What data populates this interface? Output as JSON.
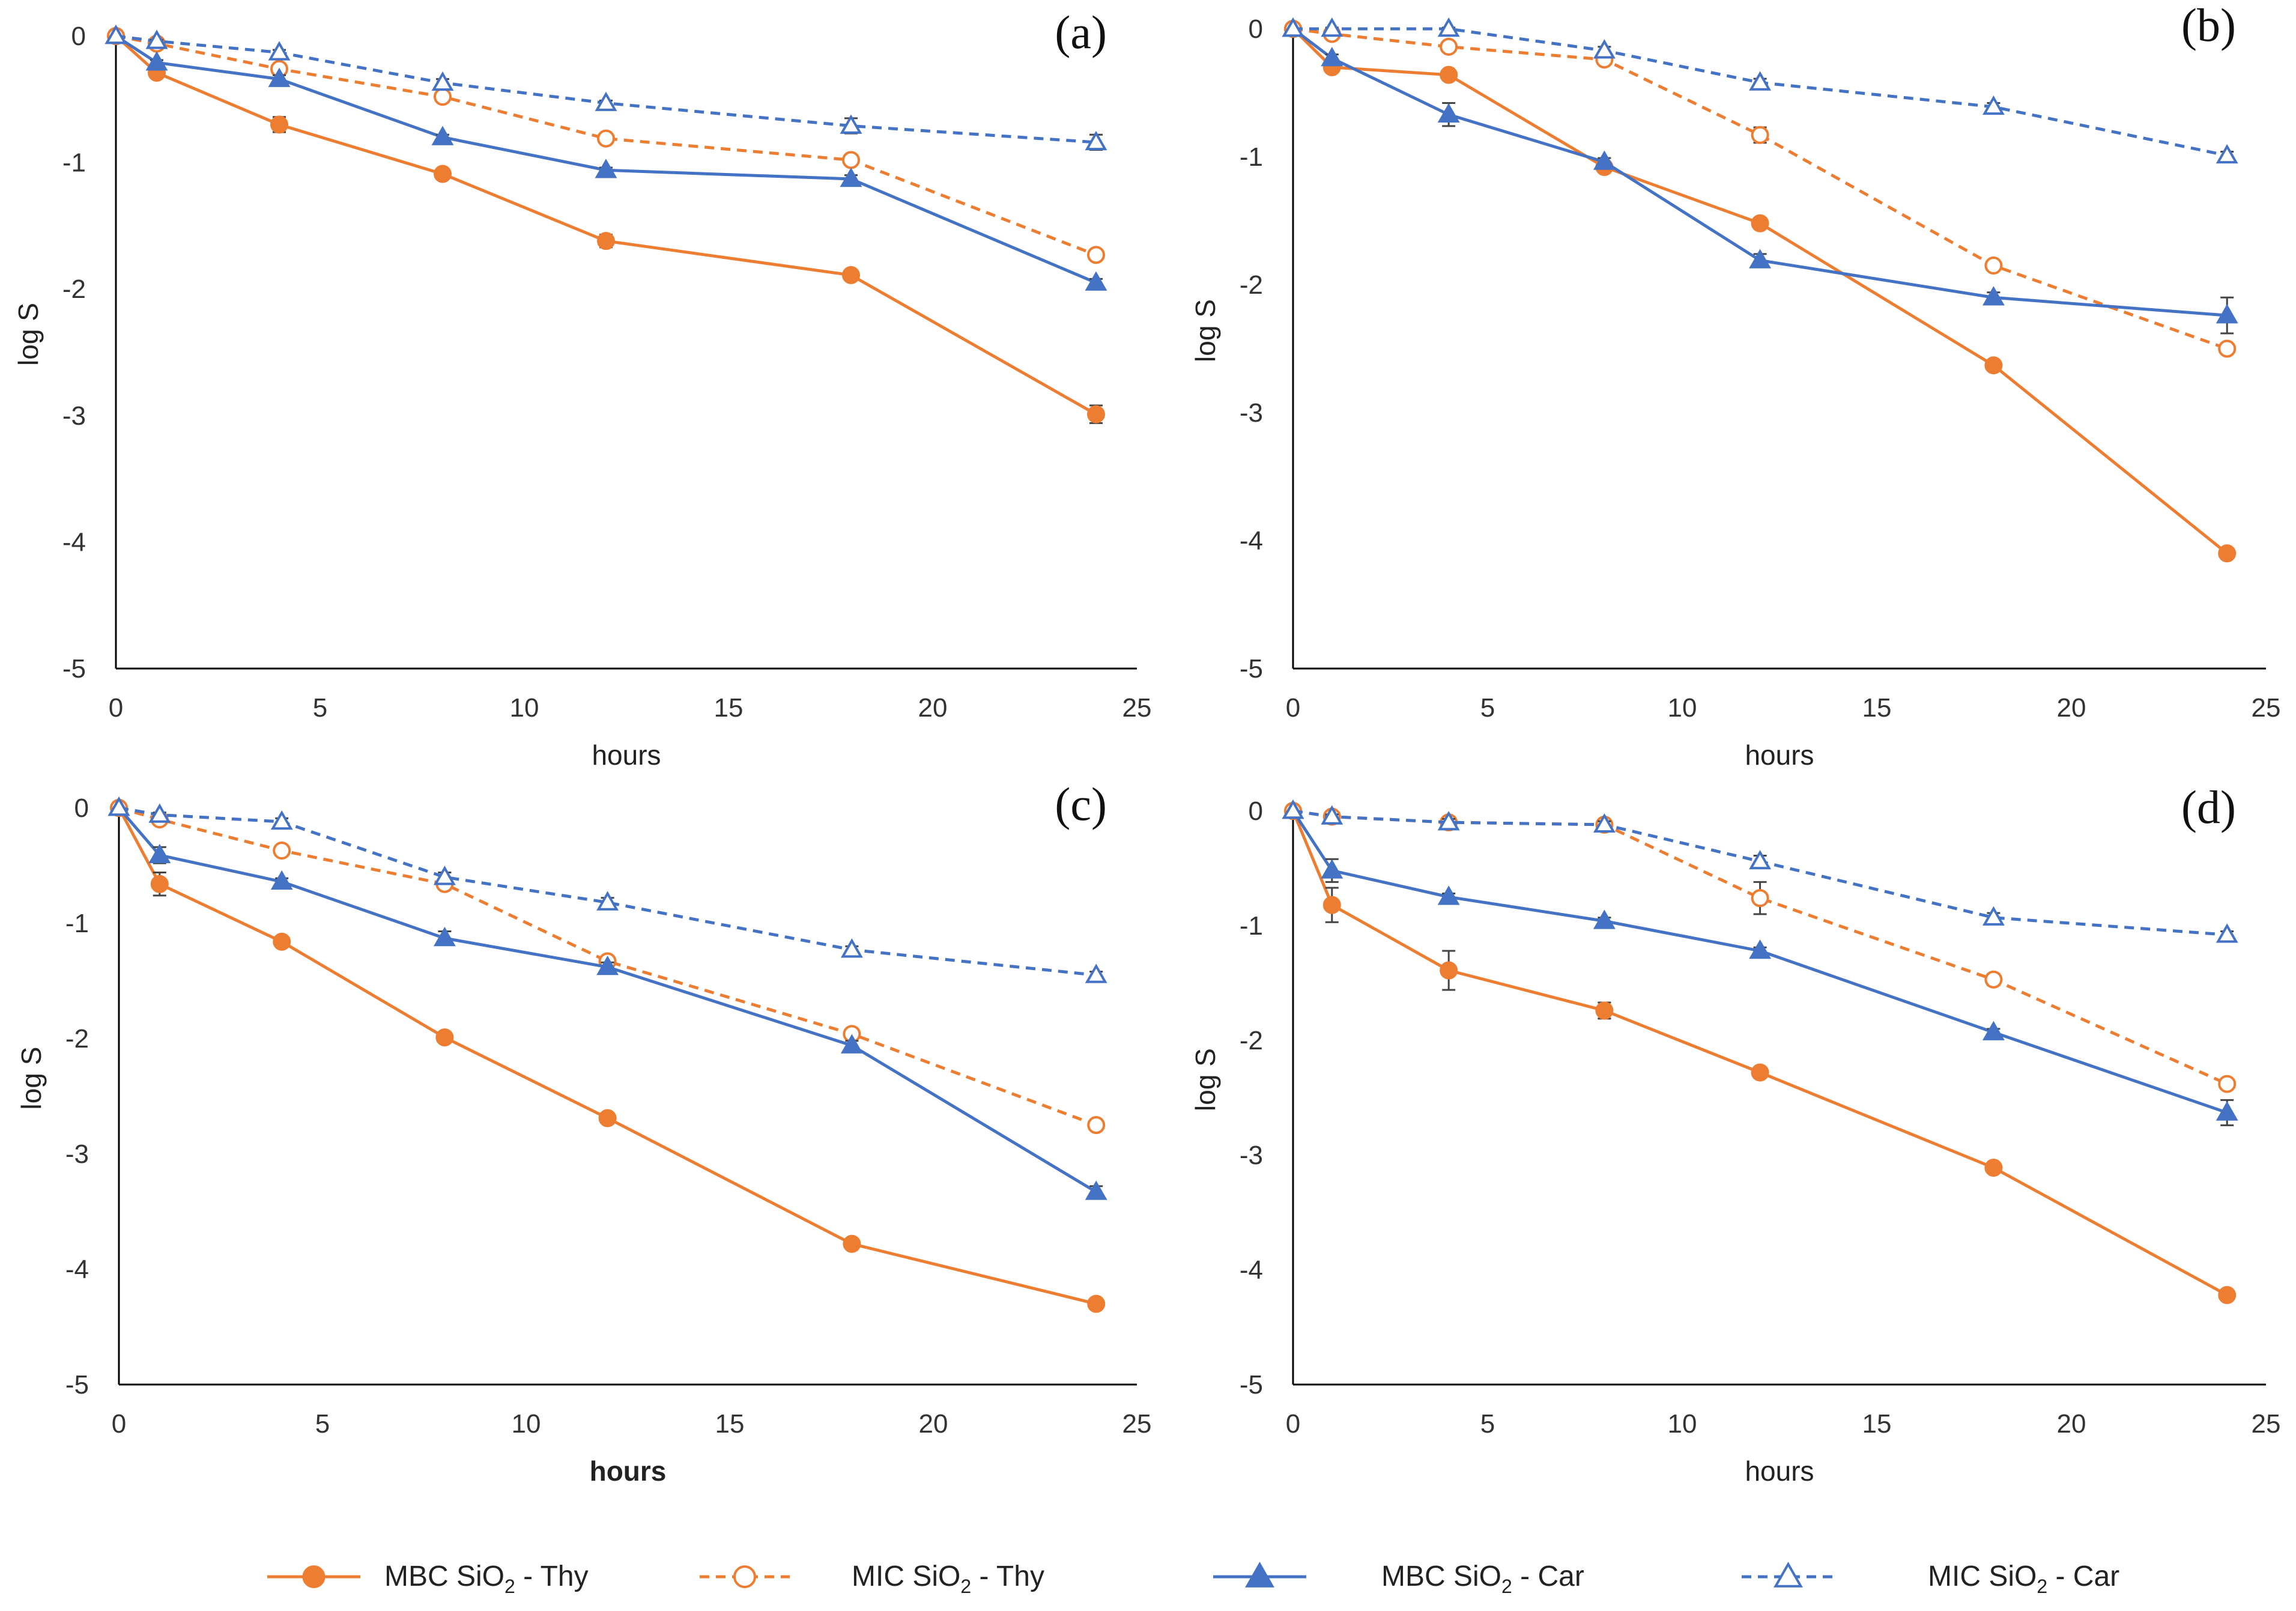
{
  "figure": {
    "series_meta": [
      {
        "key": "mbc_thy",
        "color": "#ED7D31",
        "dashed": false,
        "marker": "circle",
        "filled": true
      },
      {
        "key": "mic_thy",
        "color": "#ED7D31",
        "dashed": true,
        "marker": "circle",
        "filled": false
      },
      {
        "key": "mbc_car",
        "color": "#4472C4",
        "dashed": false,
        "marker": "triangle",
        "filled": true
      },
      {
        "key": "mic_car",
        "color": "#4472C4",
        "dashed": true,
        "marker": "triangle",
        "filled": false
      }
    ],
    "legend": [
      {
        "pre": "MBC SiO",
        "sub": "2",
        "post": " - Thy"
      },
      {
        "pre": "MIC SiO",
        "sub": "2",
        "post": " - Thy"
      },
      {
        "pre": "MBC SiO",
        "sub": "2",
        "post": " - Car"
      },
      {
        "pre": "MIC SiO",
        "sub": "2",
        "post": " - Car"
      }
    ]
  },
  "chart_data": [
    {
      "type": "line",
      "panel_label": "(a)",
      "xlabel": "hours",
      "xlabel_bold": false,
      "ylabel": "log S",
      "xlim": [
        0,
        25
      ],
      "ylim": [
        -5,
        0
      ],
      "xticks": [
        0,
        5,
        10,
        15,
        20,
        25
      ],
      "yticks": [
        0,
        -1,
        -2,
        -3,
        -4,
        -5
      ],
      "x": [
        0,
        1,
        4,
        8,
        12,
        18,
        24
      ],
      "series": [
        {
          "name": "MBC SiO2 - Thy",
          "values": [
            0,
            -0.29,
            -0.7,
            -1.09,
            -1.62,
            -1.89,
            -2.99
          ],
          "errors": [
            0,
            0.02,
            0.06,
            0.02,
            0.05,
            0.02,
            0.07
          ]
        },
        {
          "name": "MIC SiO2 - Thy",
          "values": [
            0,
            -0.06,
            -0.26,
            -0.48,
            -0.81,
            -0.98,
            -1.73
          ],
          "errors": [
            0,
            0.01,
            0.03,
            0.02,
            0.04,
            0.03,
            0.04
          ]
        },
        {
          "name": "MBC SiO2 - Car",
          "values": [
            0,
            -0.21,
            -0.34,
            -0.8,
            -1.06,
            -1.13,
            -1.95
          ],
          "errors": [
            0,
            0.02,
            0.03,
            0.02,
            0.02,
            0.03,
            0.03
          ]
        },
        {
          "name": "MIC SiO2 - Car",
          "values": [
            0,
            -0.04,
            -0.13,
            -0.37,
            -0.53,
            -0.71,
            -0.84
          ],
          "errors": [
            0,
            0.01,
            0.02,
            0.03,
            0.02,
            0.06,
            0.06
          ]
        }
      ]
    },
    {
      "type": "line",
      "panel_label": "(b)",
      "xlabel": "hours",
      "xlabel_bold": false,
      "ylabel": "log S",
      "xlim": [
        0,
        25
      ],
      "ylim": [
        -5,
        0
      ],
      "xticks": [
        0,
        5,
        10,
        15,
        20,
        25
      ],
      "yticks": [
        0,
        -1,
        -2,
        -3,
        -4,
        -5
      ],
      "x": [
        0,
        1,
        4,
        8,
        12,
        18,
        24
      ],
      "series": [
        {
          "name": "MBC SiO2 - Thy",
          "values": [
            0,
            -0.3,
            -0.36,
            -1.08,
            -1.52,
            -2.63,
            -4.1
          ],
          "errors": [
            0,
            0.03,
            0.03,
            0.03,
            0.04,
            0.03,
            0.02
          ]
        },
        {
          "name": "MIC SiO2 - Thy",
          "values": [
            0,
            -0.04,
            -0.14,
            -0.24,
            -0.83,
            -1.85,
            -2.5
          ],
          "errors": [
            0,
            0.02,
            0.03,
            0.04,
            0.06,
            0.04,
            0.04
          ]
        },
        {
          "name": "MBC SiO2 - Car",
          "values": [
            0,
            -0.23,
            -0.67,
            -1.04,
            -1.81,
            -2.1,
            -2.24
          ],
          "errors": [
            0,
            0.03,
            0.09,
            0.03,
            0.05,
            0.04,
            0.14
          ]
        },
        {
          "name": "MIC SiO2 - Car",
          "values": [
            0,
            0,
            0.0,
            -0.17,
            -0.42,
            -0.61,
            -0.99
          ],
          "errors": [
            0,
            0.01,
            0.01,
            0.03,
            0.03,
            0.03,
            0.03
          ]
        }
      ]
    },
    {
      "type": "line",
      "panel_label": "(c)",
      "xlabel": "hours",
      "xlabel_bold": true,
      "ylabel": "log S",
      "xlim": [
        0,
        25
      ],
      "ylim": [
        -5,
        0
      ],
      "xticks": [
        0,
        5,
        10,
        15,
        20,
        25
      ],
      "yticks": [
        0,
        -1,
        -2,
        -3,
        -4,
        -5
      ],
      "x": [
        0,
        1,
        4,
        8,
        12,
        18,
        24
      ],
      "series": [
        {
          "name": "MBC SiO2 - Thy",
          "values": [
            0,
            -0.66,
            -1.16,
            -1.99,
            -2.69,
            -3.78,
            -4.3
          ],
          "errors": [
            0,
            0.1,
            0.04,
            0.03,
            0.03,
            0.03,
            0.03
          ]
        },
        {
          "name": "MIC SiO2 - Thy",
          "values": [
            0,
            -0.1,
            -0.37,
            -0.66,
            -1.33,
            -1.96,
            -2.75
          ],
          "errors": [
            0,
            0.03,
            0.03,
            0.04,
            0.04,
            0.04,
            0.04
          ]
        },
        {
          "name": "MBC SiO2 - Car",
          "values": [
            0,
            -0.41,
            -0.64,
            -1.13,
            -1.38,
            -2.06,
            -3.33
          ],
          "errors": [
            0,
            0.07,
            0.03,
            0.06,
            0.04,
            0.04,
            0.05
          ]
        },
        {
          "name": "MIC SiO2 - Car",
          "values": [
            0,
            -0.06,
            -0.12,
            -0.6,
            -0.82,
            -1.23,
            -1.45
          ],
          "errors": [
            0,
            0.02,
            0.03,
            0.04,
            0.04,
            0.03,
            0.03
          ]
        }
      ]
    },
    {
      "type": "line",
      "panel_label": "(d)",
      "xlabel": "hours",
      "xlabel_bold": false,
      "ylabel": "log S",
      "xlim": [
        0,
        25
      ],
      "ylim": [
        -5,
        0
      ],
      "xticks": [
        0,
        5,
        10,
        15,
        20,
        25
      ],
      "yticks": [
        0,
        -1,
        -2,
        -3,
        -4,
        -5
      ],
      "x": [
        0,
        1,
        4,
        8,
        12,
        18,
        24
      ],
      "series": [
        {
          "name": "MBC SiO2 - Thy",
          "values": [
            0,
            -0.82,
            -1.39,
            -1.74,
            -2.28,
            -3.11,
            -4.22
          ],
          "errors": [
            0,
            0.15,
            0.17,
            0.07,
            0.03,
            0.03,
            0.03
          ]
        },
        {
          "name": "MIC SiO2 - Thy",
          "values": [
            0,
            -0.05,
            -0.1,
            -0.12,
            -0.76,
            -1.47,
            -2.38
          ],
          "errors": [
            0,
            0.02,
            0.03,
            0.04,
            0.14,
            0.05,
            0.04
          ]
        },
        {
          "name": "MBC SiO2 - Car",
          "values": [
            0,
            -0.52,
            -0.75,
            -0.96,
            -1.22,
            -1.93,
            -2.63
          ],
          "errors": [
            0,
            0.1,
            0.03,
            0.03,
            0.03,
            0.03,
            0.11
          ]
        },
        {
          "name": "MIC SiO2 - Car",
          "values": [
            0,
            -0.05,
            -0.1,
            -0.12,
            -0.44,
            -0.93,
            -1.08
          ],
          "errors": [
            0,
            0.02,
            0.03,
            0.03,
            0.05,
            0.04,
            0.03
          ]
        }
      ]
    }
  ]
}
